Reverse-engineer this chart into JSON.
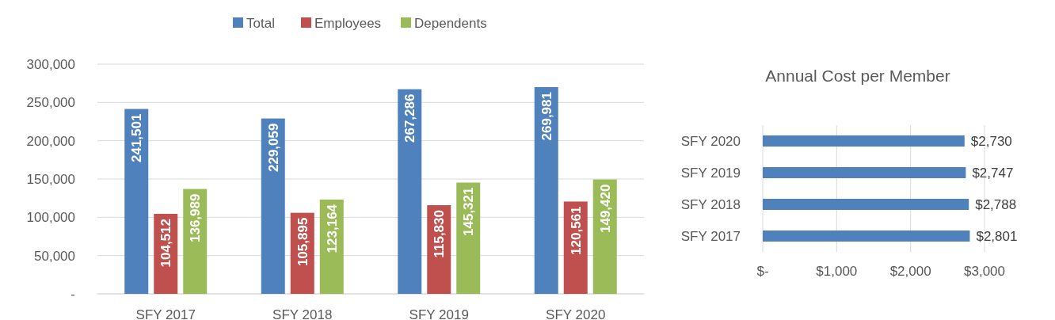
{
  "chart_data": [
    {
      "type": "bar",
      "categories": [
        "SFY 2017",
        "SFY 2018",
        "SFY 2019",
        "SFY 2020"
      ],
      "series": [
        {
          "name": "Total",
          "color": "#4f81bd",
          "values": [
            241501,
            229059,
            267286,
            269981
          ],
          "value_labels": [
            "241,501",
            "229,059",
            "267,286",
            "269,981"
          ]
        },
        {
          "name": "Employees",
          "color": "#c0504d",
          "values": [
            104512,
            105895,
            115830,
            120561
          ],
          "value_labels": [
            "104,512",
            "105,895",
            "115,830",
            "120,561"
          ]
        },
        {
          "name": "Dependents",
          "color": "#9bbb59",
          "values": [
            136989,
            123164,
            145321,
            149420
          ],
          "value_labels": [
            "136,989",
            "123,164",
            "145,321",
            "149,420"
          ]
        }
      ],
      "ylim": [
        0,
        300000
      ],
      "yticks": [
        {
          "value": 0,
          "label": "-"
        },
        {
          "value": 50000,
          "label": "50,000"
        },
        {
          "value": 100000,
          "label": "100,000"
        },
        {
          "value": 150000,
          "label": "150,000"
        },
        {
          "value": 200000,
          "label": "200,000"
        },
        {
          "value": 250000,
          "label": "250,000"
        },
        {
          "value": 300000,
          "label": "300,000"
        }
      ],
      "grid": "y",
      "legend": "top"
    },
    {
      "type": "bar",
      "orientation": "horizontal",
      "title": "Annual Cost per Member",
      "categories": [
        "SFY 2020",
        "SFY 2019",
        "SFY 2018",
        "SFY 2017"
      ],
      "values": [
        2730,
        2747,
        2788,
        2801
      ],
      "color": "#4f81bd",
      "value_labels": [
        "$2,730",
        "$2,747",
        "$2,788",
        "$2,801"
      ],
      "xlim": [
        0,
        3000
      ],
      "xticks": [
        {
          "value": 0,
          "label": "$-"
        },
        {
          "value": 1000,
          "label": "$1,000"
        },
        {
          "value": 2000,
          "label": "$2,000"
        },
        {
          "value": 3000,
          "label": "$3,000"
        }
      ],
      "grid": "x"
    }
  ]
}
